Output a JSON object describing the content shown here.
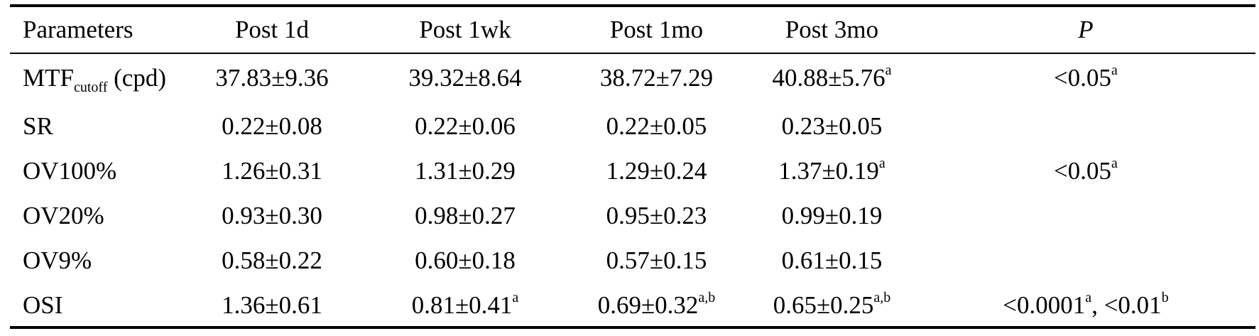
{
  "table": {
    "headers": [
      "Parameters",
      "Post 1d",
      "Post 1wk",
      "Post 1mo",
      "Post 3mo",
      "P"
    ],
    "rows": [
      {
        "param": {
          "main": "MTF",
          "sub": "cutoff",
          "suffix": " (cpd)"
        },
        "cells": [
          {
            "value": "37.83±9.36",
            "sup": ""
          },
          {
            "value": "39.32±8.64",
            "sup": ""
          },
          {
            "value": "38.72±7.29",
            "sup": ""
          },
          {
            "value": "40.88±5.76",
            "sup": "a"
          },
          {
            "value": "<0.05",
            "sup": "a"
          }
        ]
      },
      {
        "param": {
          "main": "SR",
          "sub": "",
          "suffix": ""
        },
        "cells": [
          {
            "value": "0.22±0.08",
            "sup": ""
          },
          {
            "value": "0.22±0.06",
            "sup": ""
          },
          {
            "value": "0.22±0.05",
            "sup": ""
          },
          {
            "value": "0.23±0.05",
            "sup": ""
          },
          {
            "value": "",
            "sup": ""
          }
        ]
      },
      {
        "param": {
          "main": "OV100%",
          "sub": "",
          "suffix": ""
        },
        "cells": [
          {
            "value": "1.26±0.31",
            "sup": ""
          },
          {
            "value": "1.31±0.29",
            "sup": ""
          },
          {
            "value": "1.29±0.24",
            "sup": ""
          },
          {
            "value": "1.37±0.19",
            "sup": "a"
          },
          {
            "value": "<0.05",
            "sup": "a"
          }
        ]
      },
      {
        "param": {
          "main": "OV20%",
          "sub": "",
          "suffix": ""
        },
        "cells": [
          {
            "value": "0.93±0.30",
            "sup": ""
          },
          {
            "value": "0.98±0.27",
            "sup": ""
          },
          {
            "value": "0.95±0.23",
            "sup": ""
          },
          {
            "value": "0.99±0.19",
            "sup": ""
          },
          {
            "value": "",
            "sup": ""
          }
        ]
      },
      {
        "param": {
          "main": "OV9%",
          "sub": "",
          "suffix": ""
        },
        "cells": [
          {
            "value": "0.58±0.22",
            "sup": ""
          },
          {
            "value": "0.60±0.18",
            "sup": ""
          },
          {
            "value": "0.57±0.15",
            "sup": ""
          },
          {
            "value": "0.61±0.15",
            "sup": ""
          },
          {
            "value": "",
            "sup": ""
          }
        ]
      },
      {
        "param": {
          "main": "OSI",
          "sub": "",
          "suffix": ""
        },
        "cells": [
          {
            "value": "1.36±0.61",
            "sup": ""
          },
          {
            "value": "0.81±0.41",
            "sup": "a"
          },
          {
            "value": "0.69±0.32",
            "sup": "a,b"
          },
          {
            "value": "0.65±0.25",
            "sup": "a,b"
          },
          {
            "value": "<0.0001",
            "sup": "a",
            "value2": ", <0.01",
            "sup2": "b"
          }
        ]
      }
    ]
  }
}
